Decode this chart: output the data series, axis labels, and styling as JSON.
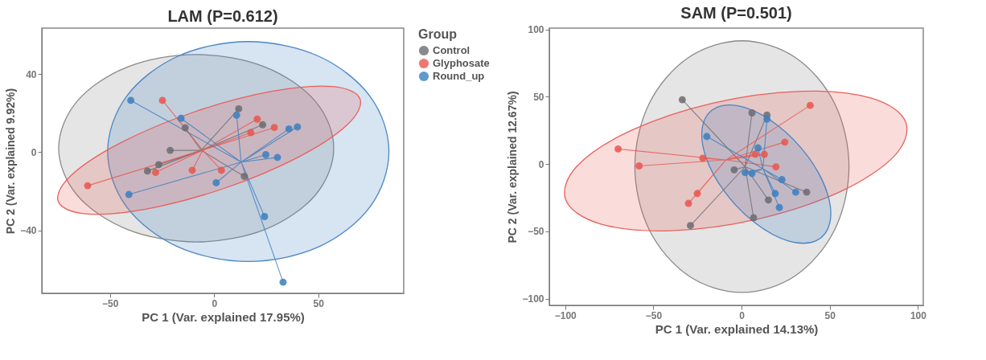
{
  "chart_data": [
    {
      "type": "scatter",
      "title": "LAM (P=0.612)",
      "xlabel": "PC 1 (Var. explained 17.95%)",
      "ylabel": "PC 2 (Var. explained 9.92%)",
      "xlim": [
        -82.7,
        91
      ],
      "ylim": [
        -72.3,
        63.5
      ],
      "xticks": [
        -50,
        0,
        50
      ],
      "yticks": [
        -40,
        0,
        40
      ],
      "grid": false,
      "legend": "right",
      "legend_title": "Group",
      "series": [
        {
          "type": "area",
          "color": "#8a8a88",
          "x": [
            57.4,
            48.6,
            24.4,
            -8.6,
            -41.6,
            -65.8,
            -74.6,
            -65.8,
            -41.6,
            -8.6,
            24.4,
            48.6
          ],
          "values": [
            2,
            26,
            43.6,
            50,
            43.6,
            26,
            2,
            -22,
            -39.6,
            -46,
            -39.6,
            -22
          ]
        },
        {
          "type": "area",
          "color": "#4a86c5",
          "x": [
            83.9,
            74.9,
            50.2,
            16.4,
            -17.4,
            -42.1,
            -51.1,
            -42.1,
            -17.4,
            16.4,
            50.2,
            74.9
          ],
          "values": [
            0.3,
            28.5,
            49.1,
            56.6,
            49.1,
            28.5,
            0.3,
            -27.9,
            -48.5,
            -56,
            -48.5,
            -27.9
          ]
        },
        {
          "type": "area",
          "color": "#e8605a",
          "x": [
            70.0,
            56.7,
            27.6,
            -9.5,
            -44.8,
            -68.7,
            -74.8,
            -61.5,
            -32.4,
            4.7,
            40.0,
            63.9
          ],
          "values": [
            27.3,
            33.6,
            31.1,
            20.6,
            4.8,
            -12.0,
            -25.3,
            -31.6,
            -29.1,
            -18.6,
            -2.8,
            14.0
          ]
        },
        {
          "type": "line",
          "color": "#6b6b70",
          "x": [
            -6.2,
            11.8,
            -6.2,
            23.3,
            -6.2,
            -13.9,
            -6.2,
            -21.1,
            -6.2,
            -26.6,
            -6.2,
            -32,
            -6.2,
            14.5
          ],
          "values": [
            0.9,
            22.2,
            0.9,
            14,
            0.9,
            12.5,
            0.9,
            0.9,
            0.9,
            -6.4,
            0.9,
            -9.7,
            0.9,
            -12.4
          ]
        },
        {
          "type": "line",
          "color": "#e8564e",
          "x": [
            -5.5,
            -60.7,
            -5.5,
            -24.8,
            -5.5,
            20.7,
            -5.5,
            28.9,
            -5.5,
            17.6,
            -5.5,
            -10.5,
            -5.5,
            3.5,
            -5.5,
            -28.1
          ],
          "values": [
            1,
            -17.2,
            1,
            26.5,
            1,
            16.9,
            1,
            12.6,
            1,
            10,
            1,
            -9.3,
            1,
            -9.3,
            1,
            -10.4
          ]
        },
        {
          "type": "line",
          "color": "#3a7fc0",
          "x": [
            13,
            33.1,
            13,
            24.2,
            13,
            -40,
            13,
            -40.9,
            13,
            1,
            13,
            10.8,
            13,
            35.9,
            13,
            40,
            13,
            24.8,
            13,
            30.4,
            13,
            -15.9
          ],
          "values": [
            -5.1,
            -66.6,
            -5.1,
            -33,
            -5.1,
            26.5,
            -5.1,
            -21.7,
            -5.1,
            -15.7,
            -5.1,
            18.9,
            -5.1,
            11.9,
            -5.1,
            12.9,
            -5.1,
            -1.3,
            -5.1,
            -2.7,
            -5.1,
            17.3
          ]
        },
        {
          "marker": "circle",
          "name": "Control",
          "color": "#6b6b70",
          "x": [
            11.8,
            23.3,
            -13.9,
            -21.1,
            -26.6,
            -32,
            14.5
          ],
          "values": [
            22.2,
            14,
            12.5,
            0.9,
            -6.4,
            -9.7,
            -12.4
          ]
        },
        {
          "marker": "circle",
          "name": "Glyphosate",
          "color": "#e8564e",
          "x": [
            -60.7,
            -24.8,
            20.7,
            28.9,
            17.6,
            -10.5,
            3.5,
            -28.1
          ],
          "values": [
            -17.2,
            26.5,
            16.9,
            12.6,
            10,
            -9.3,
            -9.3,
            -10.4
          ]
        },
        {
          "marker": "circle",
          "name": "Round_up",
          "color": "#3a7fc0",
          "x": [
            33.1,
            24.2,
            -40,
            -40.9,
            1,
            10.8,
            35.9,
            40,
            24.8,
            30.4,
            -15.9
          ],
          "values": [
            -66.6,
            -33,
            26.5,
            -21.7,
            -15.7,
            18.9,
            11.9,
            12.9,
            -1.3,
            -2.7,
            17.3
          ]
        }
      ]
    },
    {
      "type": "scatter",
      "title": "SAM (P=0.501)",
      "xlabel": "PC 1 (Var. explained 14.13%)",
      "ylabel": "PC 2 (Var. explained 12.67%)",
      "xlim": [
        -109,
        103
      ],
      "ylim": [
        -105,
        101
      ],
      "xticks": [
        -100,
        -50,
        0,
        50,
        100
      ],
      "yticks": [
        -100,
        -50,
        0,
        50,
        100
      ],
      "grid": false,
      "series": [
        {
          "type": "area",
          "color": "#8a8a88",
          "x": [
            60.9,
            52.8,
            30.6,
            0.2,
            -30.2,
            -52.4,
            -60.5,
            -52.4,
            -30.2,
            0.2,
            30.6,
            52.8
          ],
          "values": [
            -1.9,
            44.9,
            79.1,
            91.6,
            79.1,
            44.9,
            -1.9,
            -48.7,
            -82.9,
            -95.4,
            -82.9,
            -48.7
          ]
        },
        {
          "type": "area",
          "color": "#e8605a",
          "x": [
            93.0,
            73.6,
            33.6,
            -16.3,
            -62.7,
            -93.2,
            -99.6,
            -80.2,
            -40.2,
            9.7,
            56.1,
            86.6
          ],
          "values": [
            31.4,
            49.0,
            54.1,
            45.3,
            24.9,
            -1.4,
            -26.8,
            -44.4,
            -49.5,
            -40.7,
            -20.4,
            6.0
          ]
        },
        {
          "type": "area",
          "color": "#4a86c5",
          "x": [
            -14.0,
            -22.0,
            -20.4,
            -9.5,
            7.7,
            26.5,
            42.0,
            50.0,
            48.4,
            37.5,
            20.4,
            1.6
          ],
          "values": [
            42.1,
            28.8,
            5.8,
            -20.8,
            -43.8,
            -57.1,
            -57.1,
            -43.8,
            -20.8,
            5.8,
            28.8,
            42.1
          ]
        },
        {
          "type": "line",
          "color": "#6b6b70",
          "x": [
            2,
            -33.6,
            2,
            -29,
            2,
            5.9,
            2,
            14.4,
            2,
            -4.2,
            2,
            15.2,
            2,
            36.9,
            2,
            6.8
          ],
          "values": [
            -2,
            47.8,
            -2,
            -45.7,
            -2,
            38,
            -2,
            36.4,
            -2,
            -4.3,
            -2,
            -26.7,
            -2,
            -20.9,
            -2,
            -39.9
          ]
        },
        {
          "type": "line",
          "color": "#e8564e",
          "x": [
            -8.8,
            -70,
            -8.8,
            -58.1,
            -8.8,
            -25.1,
            -8.8,
            -30.1,
            -8.8,
            38.9,
            -8.8,
            24.5,
            -8.8,
            19.5,
            -8.8,
            12.9,
            -8.8,
            7.8,
            -8.8,
            -22
          ],
          "values": [
            3.1,
            11.2,
            3.1,
            -1.4,
            3.1,
            -21.9,
            3.1,
            -29.2,
            3.1,
            43.6,
            3.1,
            16.3,
            3.1,
            -2.1,
            3.1,
            7.2,
            3.1,
            7.2,
            3.1,
            4.3
          ]
        },
        {
          "type": "line",
          "color": "#3a7fc0",
          "x": [
            12.1,
            -19.7,
            12.1,
            9.3,
            12.1,
            14.4,
            12.1,
            22.9,
            12.1,
            19.1,
            12.1,
            30.7,
            12.1,
            21.4,
            12.1,
            2,
            12.1,
            5.9
          ],
          "values": [
            -3.5,
            20.5,
            -3.5,
            12,
            -3.5,
            33.3,
            -3.5,
            -11.6,
            -3.5,
            -21.9,
            -3.5,
            -20.9,
            -3.5,
            -32.3,
            -3.5,
            -6.4,
            -3.5,
            -7
          ]
        },
        {
          "marker": "circle",
          "color": "#6b6b70",
          "x": [
            -33.6,
            -29,
            5.9,
            14.4,
            -4.2,
            15.2,
            36.9,
            6.8
          ],
          "values": [
            47.8,
            -45.7,
            38,
            36.4,
            -4.3,
            -26.7,
            -20.9,
            -39.9
          ]
        },
        {
          "marker": "circle",
          "color": "#e8564e",
          "x": [
            -70,
            -58.1,
            -25.1,
            -30.1,
            38.9,
            24.5,
            19.5,
            12.9,
            7.8,
            -22
          ],
          "values": [
            11.2,
            -1.4,
            -21.9,
            -29.2,
            43.6,
            16.3,
            -2.1,
            7.2,
            7.2,
            4.3
          ]
        },
        {
          "marker": "circle",
          "color": "#3a7fc0",
          "x": [
            -19.7,
            9.3,
            14.4,
            22.9,
            19.1,
            30.7,
            21.4,
            2,
            5.9
          ],
          "values": [
            20.5,
            12,
            33.3,
            -11.6,
            -21.9,
            -20.9,
            -32.3,
            -6.4,
            -7
          ]
        }
      ]
    }
  ]
}
